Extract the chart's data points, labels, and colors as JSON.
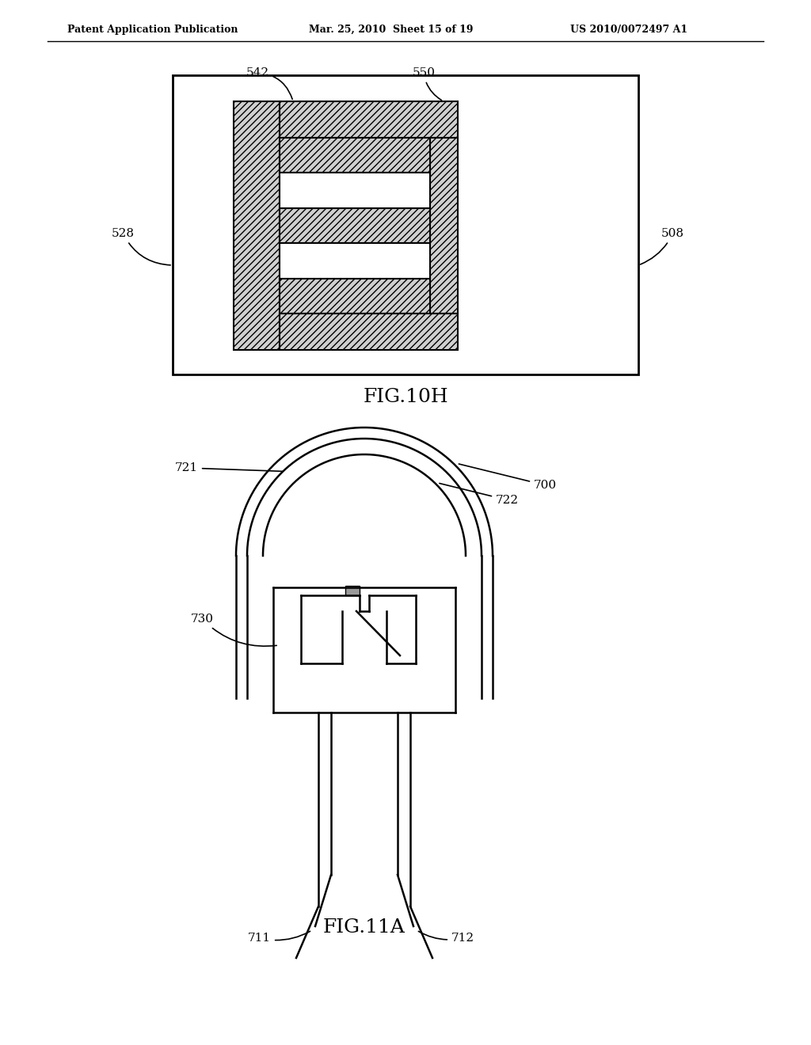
{
  "bg_color": "#ffffff",
  "line_color": "#000000",
  "header_left": "Patent Application Publication",
  "header_mid": "Mar. 25, 2010  Sheet 15 of 19",
  "header_right": "US 2010/0072497 A1",
  "fig10h_label": "FIG.10H",
  "fig11a_label": "FIG.11A"
}
